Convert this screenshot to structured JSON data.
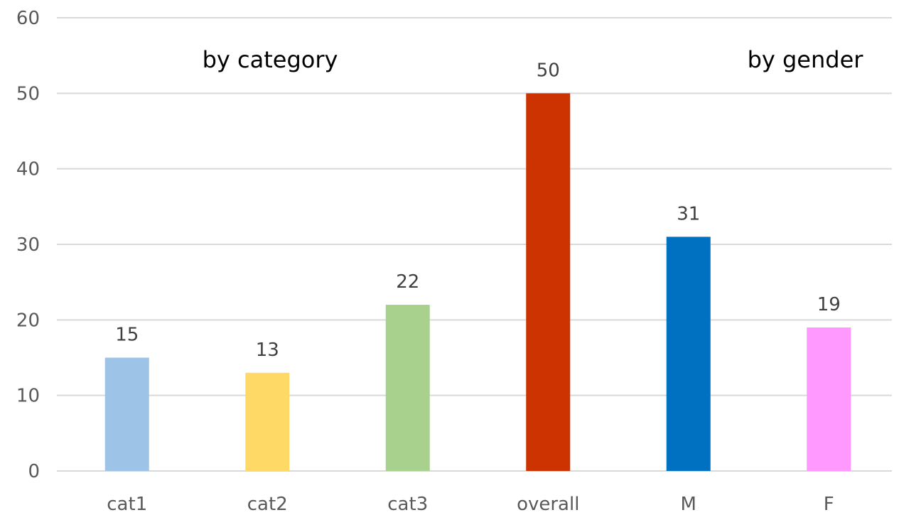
{
  "chart_data": {
    "type": "bar",
    "title": "",
    "xlabel": "",
    "ylabel": "",
    "categories": [
      "cat1",
      "cat2",
      "cat3",
      "overall",
      "M",
      "F"
    ],
    "values": [
      15,
      13,
      22,
      50,
      31,
      19
    ],
    "colors": [
      "#9dc3e6",
      "#ffd966",
      "#a9d18e",
      "#cc3300",
      "#0070c0",
      "#ff99ff"
    ],
    "ylim": [
      0,
      60
    ],
    "yticks": [
      0,
      10,
      20,
      30,
      40,
      50,
      60
    ],
    "grid": true,
    "legend": "none",
    "show_data_labels": true,
    "annotations": [
      "by category",
      "by gender"
    ]
  }
}
